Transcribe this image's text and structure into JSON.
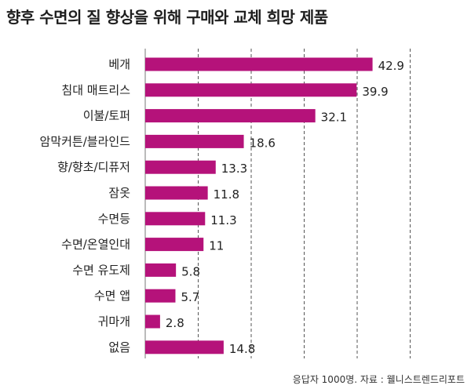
{
  "title": "향후 수면의 질 향상을 위해 구매와 교체 희망 제품",
  "source": "응답자 1000명. 자료 : 웰니스트렌드리포트",
  "colors": {
    "bar": "#b5127a",
    "grid": "#555555"
  },
  "chart_data": {
    "type": "bar",
    "orientation": "horizontal",
    "title": "향후 수면의 질 향상을 위해 구매와 교체 희망 제품",
    "xlabel": "",
    "ylabel": "",
    "xlim": [
      0,
      50
    ],
    "grid": true,
    "categories": [
      "베개",
      "침대 매트리스",
      "이불/토퍼",
      "암막커튼/블라인드",
      "향/향초/디퓨저",
      "잠옷",
      "수면등",
      "수면/온열인대",
      "수면 유도제",
      "수면 앱",
      "귀마개",
      "없음"
    ],
    "values": [
      42.9,
      39.9,
      32.1,
      18.6,
      13.3,
      11.8,
      11.3,
      11,
      5.8,
      5.7,
      2.8,
      14.8
    ],
    "value_labels": [
      "42.9",
      "39.9",
      "32.1",
      "18.6",
      "13.3",
      "11.8",
      "11.3",
      "11",
      "5.8",
      "5.7",
      "2.8",
      "14.8"
    ]
  }
}
